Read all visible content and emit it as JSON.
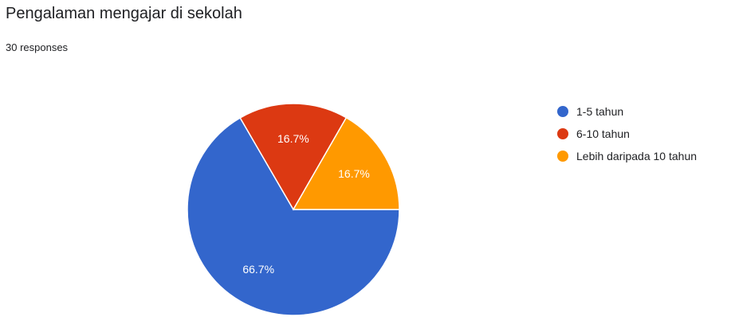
{
  "header": {
    "title": "Pengalaman mengajar di sekolah",
    "responses": "30 responses"
  },
  "chart_data": {
    "type": "pie",
    "slices": [
      {
        "name": "1-5 tahun",
        "value": 66.7,
        "label": "66.7%",
        "color": "#3366cc"
      },
      {
        "name": "6-10 tahun",
        "value": 16.7,
        "label": "16.7%",
        "color": "#dc3912"
      },
      {
        "name": "Lebih daripada 10 tahun",
        "value": 16.7,
        "label": "16.7%",
        "color": "#ff9900"
      }
    ],
    "legend_position": "right"
  }
}
